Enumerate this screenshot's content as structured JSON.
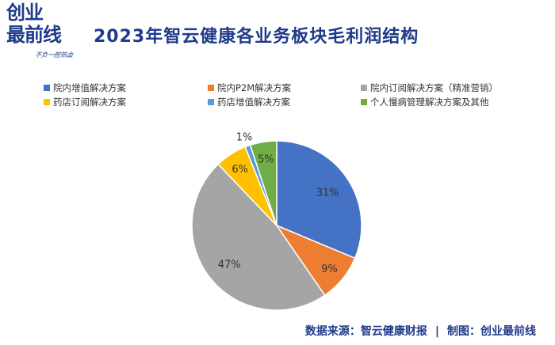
{
  "logo": {
    "line1": "创业",
    "line2": "最前线",
    "tagline": "不负一腔热血"
  },
  "title": "2023年智云健康各业务板块毛利润结构",
  "colors": {
    "brand": "#1f3a8a",
    "series": [
      "#4472c4",
      "#ed7d31",
      "#a5a5a5",
      "#ffc000",
      "#5b9bd5",
      "#70ad47"
    ]
  },
  "chart_data": {
    "type": "pie",
    "title": "2023年智云健康各业务板块毛利润结构",
    "slices": [
      {
        "name": "院内增值解决方案",
        "value": 31,
        "label": "31%"
      },
      {
        "name": "院内P2M解决方案",
        "value": 9,
        "label": "9%"
      },
      {
        "name": "院内订阅解决方案（精准营销）",
        "value": 47,
        "label": "47%"
      },
      {
        "name": "药店订阅解决方案",
        "value": 6,
        "label": "6%"
      },
      {
        "name": "药店增值解决方案",
        "value": 1,
        "label": "1%"
      },
      {
        "name": "个人慢病管理解决方案及其他",
        "value": 5,
        "label": "5%"
      }
    ],
    "legend_position": "top"
  },
  "footer": {
    "source": "数据来源：智云健康财报",
    "separator": "|",
    "credit": "制图：创业最前线"
  }
}
